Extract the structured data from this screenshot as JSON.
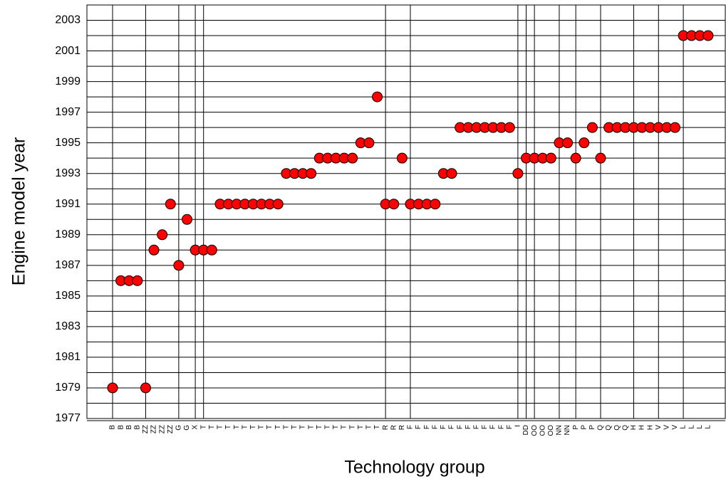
{
  "chart_data": {
    "type": "scatter",
    "x_label": "Technology group",
    "y_label": "Engine model year",
    "categories": [
      "B",
      "B",
      "B",
      "B",
      "ZZ",
      "ZZ",
      "ZZ",
      "ZZ",
      "G",
      "G",
      "X",
      "T",
      "T",
      "T",
      "T",
      "T",
      "T",
      "T",
      "T",
      "T",
      "T",
      "T",
      "T",
      "T",
      "T",
      "T",
      "T",
      "T",
      "T",
      "T",
      "T",
      "T",
      "T",
      "R",
      "R",
      "R",
      "F",
      "F",
      "F",
      "F",
      "F",
      "F",
      "F",
      "F",
      "F",
      "F",
      "F",
      "F",
      "F",
      "I",
      "DD",
      "OO",
      "OO",
      "OO",
      "NN",
      "NN",
      "P",
      "P",
      "P",
      "Q",
      "Q",
      "Q",
      "Q",
      "H",
      "H",
      "H",
      "V",
      "V",
      "V",
      "L",
      "L",
      "L",
      "L"
    ],
    "values": [
      1979,
      1986,
      1986,
      1986,
      1979,
      1988,
      1989,
      1991,
      1987,
      1990,
      1988,
      1988,
      1988,
      1991,
      1991,
      1991,
      1991,
      1991,
      1991,
      1991,
      1991,
      1993,
      1993,
      1993,
      1993,
      1994,
      1994,
      1994,
      1994,
      1994,
      1995,
      1995,
      1998,
      1991,
      1991,
      1994,
      1991,
      1991,
      1991,
      1991,
      1993,
      1993,
      1996,
      1996,
      1996,
      1996,
      1996,
      1996,
      1996,
      1993,
      1994,
      1994,
      1994,
      1994,
      1995,
      1995,
      1994,
      1995,
      1996,
      1994,
      1996,
      1996,
      1996,
      1996,
      1996,
      1996,
      1996,
      1996,
      1996,
      2002,
      2002,
      2002,
      2002
    ],
    "color": "#ff0000",
    "ylim": [
      1977,
      2004
    ],
    "yticks": [
      1977,
      1979,
      1981,
      1983,
      1985,
      1987,
      1989,
      1991,
      1993,
      1995,
      1997,
      1999,
      2001,
      2003
    ],
    "grid": true
  }
}
